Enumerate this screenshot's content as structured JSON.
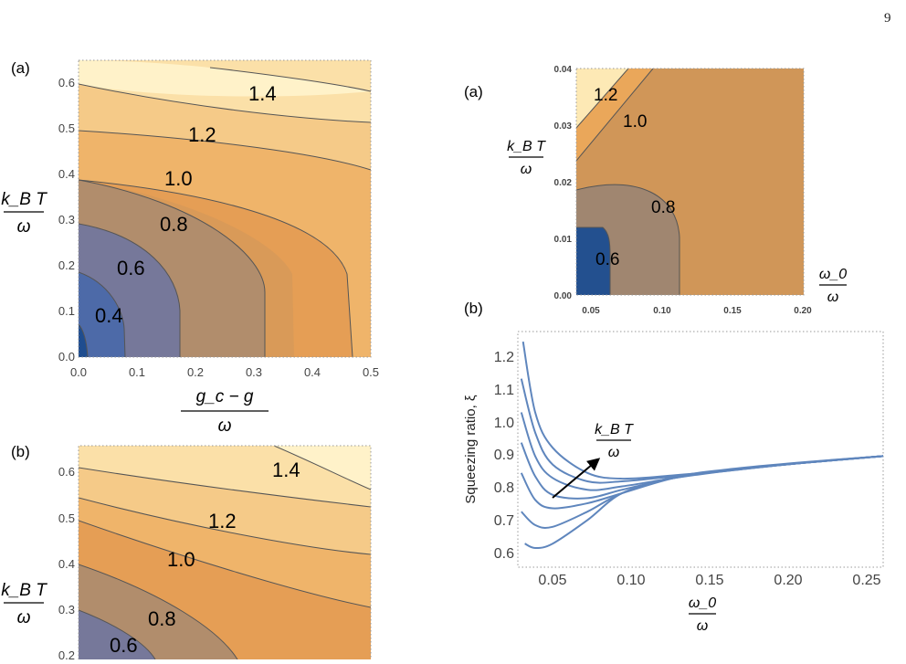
{
  "page_number": "9",
  "chart_data": [
    {
      "panel_label": "(a)",
      "type": "contour",
      "xlabel_num": "g_c − g",
      "xlabel_den": "ω",
      "ylabel_num": "k_B T",
      "ylabel_den": "ω",
      "xlim": [
        0,
        0.5
      ],
      "ylim": [
        0,
        0.65
      ],
      "xticks": [
        "0.0",
        "0.1",
        "0.2",
        "0.3",
        "0.4",
        "0.5"
      ],
      "yticks": [
        "0.0",
        "0.1",
        "0.2",
        "0.3",
        "0.4",
        "0.5",
        "0.6"
      ],
      "contour_levels": [
        "0.4",
        "0.6",
        "0.8",
        "1.0",
        "1.2",
        "1.4"
      ],
      "colors": [
        "#1f4d8f",
        "#4d6aa8",
        "#76789a",
        "#b18d6c",
        "#e59e55",
        "#efb46a",
        "#f5ca88",
        "#fbe0a8",
        "#fff2c9"
      ]
    },
    {
      "panel_label": "(b)",
      "type": "contour",
      "ylabel_num": "k_B T",
      "ylabel_den": "ω",
      "xlim": [
        0,
        0.5
      ],
      "ylim": [
        0,
        0.65
      ],
      "yticks": [
        "0.2",
        "0.3",
        "0.4",
        "0.5",
        "0.6"
      ],
      "contour_levels": [
        "0.6",
        "0.8",
        "1.0",
        "1.2",
        "1.4"
      ],
      "colors": [
        "#76789a",
        "#b18d6c",
        "#e59e55",
        "#efb46a",
        "#f5ca88",
        "#fbe0a8",
        "#fff2c9"
      ]
    },
    {
      "panel_label": "(a)",
      "type": "contour",
      "xlabel_num": "ω_0",
      "xlabel_den": "ω",
      "ylabel_num": "k_B T",
      "ylabel_den": "ω",
      "xlim": [
        0.04,
        0.2
      ],
      "ylim": [
        0,
        0.04
      ],
      "xticks": [
        "0.05",
        "0.10",
        "0.15",
        "0.20"
      ],
      "yticks": [
        "0.00",
        "0.01",
        "0.02",
        "0.03",
        "0.04"
      ],
      "contour_levels": [
        "0.6",
        "0.8",
        "1.0",
        "1.2"
      ],
      "colors": [
        "#23508f",
        "#a08670",
        "#d09658",
        "#eaa75a",
        "#fde9b5"
      ]
    },
    {
      "panel_label": "(b)",
      "type": "line",
      "xlabel_num": "ω_0",
      "xlabel_den": "ω",
      "ylabel": "Squeezing ratio, ξ",
      "arrow_label_num": "k_B T",
      "arrow_label_den": "ω",
      "xlim": [
        0.04,
        0.25
      ],
      "ylim": [
        0.58,
        1.28
      ],
      "xticks": [
        "0.05",
        "0.10",
        "0.15",
        "0.20",
        "0.25"
      ],
      "yticks": [
        "0.6",
        "0.7",
        "0.8",
        "0.9",
        "1.0",
        "1.1",
        "1.2"
      ],
      "line_color": "#5f86bd",
      "series": [
        {
          "x": [
            0.044,
            0.05,
            0.06,
            0.08,
            0.1,
            0.13,
            0.16,
            0.2,
            0.25
          ],
          "y": [
            0.65,
            0.637,
            0.65,
            0.72,
            0.8,
            0.848,
            0.87,
            0.89,
            0.91
          ]
        },
        {
          "x": [
            0.042,
            0.05,
            0.06,
            0.08,
            0.1,
            0.13,
            0.16,
            0.2,
            0.25
          ],
          "y": [
            0.745,
            0.705,
            0.7,
            0.745,
            0.8,
            0.847,
            0.868,
            0.889,
            0.91
          ]
        },
        {
          "x": [
            0.042,
            0.05,
            0.06,
            0.08,
            0.1,
            0.13,
            0.16,
            0.2,
            0.25
          ],
          "y": [
            0.86,
            0.78,
            0.755,
            0.77,
            0.8,
            0.845,
            0.867,
            0.888,
            0.91
          ]
        },
        {
          "x": [
            0.042,
            0.05,
            0.06,
            0.08,
            0.1,
            0.13,
            0.16,
            0.2,
            0.25
          ],
          "y": [
            0.95,
            0.85,
            0.795,
            0.785,
            0.81,
            0.845,
            0.867,
            0.888,
            0.91
          ]
        },
        {
          "x": [
            0.042,
            0.05,
            0.06,
            0.08,
            0.1,
            0.13,
            0.16,
            0.2,
            0.25
          ],
          "y": [
            1.04,
            0.91,
            0.845,
            0.81,
            0.82,
            0.845,
            0.866,
            0.888,
            0.91
          ]
        },
        {
          "x": [
            0.042,
            0.05,
            0.06,
            0.08,
            0.1,
            0.13,
            0.16,
            0.2,
            0.25
          ],
          "y": [
            1.14,
            0.98,
            0.885,
            0.835,
            0.835,
            0.85,
            0.866,
            0.888,
            0.91
          ]
        },
        {
          "x": [
            0.043,
            0.05,
            0.06,
            0.08,
            0.1,
            0.13,
            0.16,
            0.2,
            0.25
          ],
          "y": [
            1.25,
            1.04,
            0.935,
            0.86,
            0.843,
            0.853,
            0.867,
            0.888,
            0.91
          ]
        }
      ]
    }
  ]
}
